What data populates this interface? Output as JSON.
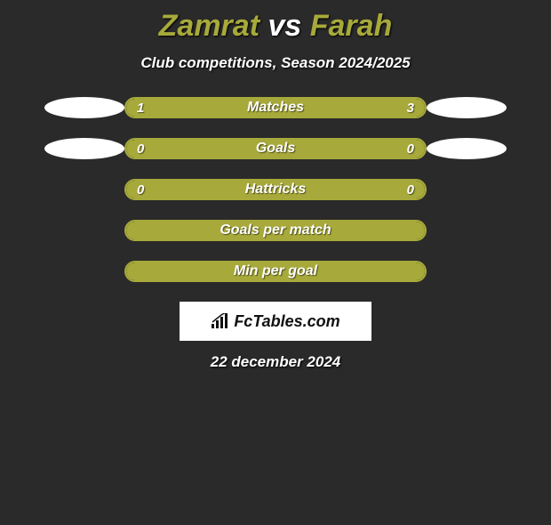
{
  "title_player1": "Zamrat",
  "title_vs": "vs",
  "title_player2": "Farah",
  "title_color_player": "#a7a93a",
  "title_color_vs": "#ffffff",
  "subtitle": "Club competitions, Season 2024/2025",
  "background_color": "#2a2a2a",
  "bar_border": "#a7a93a",
  "bar_fill": "#a7a93a",
  "rows": [
    {
      "label": "Matches",
      "left": "1",
      "right": "3",
      "left_pct": 25,
      "right_pct": 75,
      "show_dots": true
    },
    {
      "label": "Goals",
      "left": "0",
      "right": "0",
      "left_pct": 50,
      "right_pct": 50,
      "show_dots": true
    },
    {
      "label": "Hattricks",
      "left": "0",
      "right": "0",
      "left_pct": 50,
      "right_pct": 50,
      "show_dots": false
    },
    {
      "label": "Goals per match",
      "left": "",
      "right": "",
      "left_pct": 50,
      "right_pct": 50,
      "show_dots": false
    },
    {
      "label": "Min per goal",
      "left": "",
      "right": "",
      "left_pct": 50,
      "right_pct": 50,
      "show_dots": false
    }
  ],
  "logo_text": "FcTables.com",
  "date": "22 december 2024"
}
